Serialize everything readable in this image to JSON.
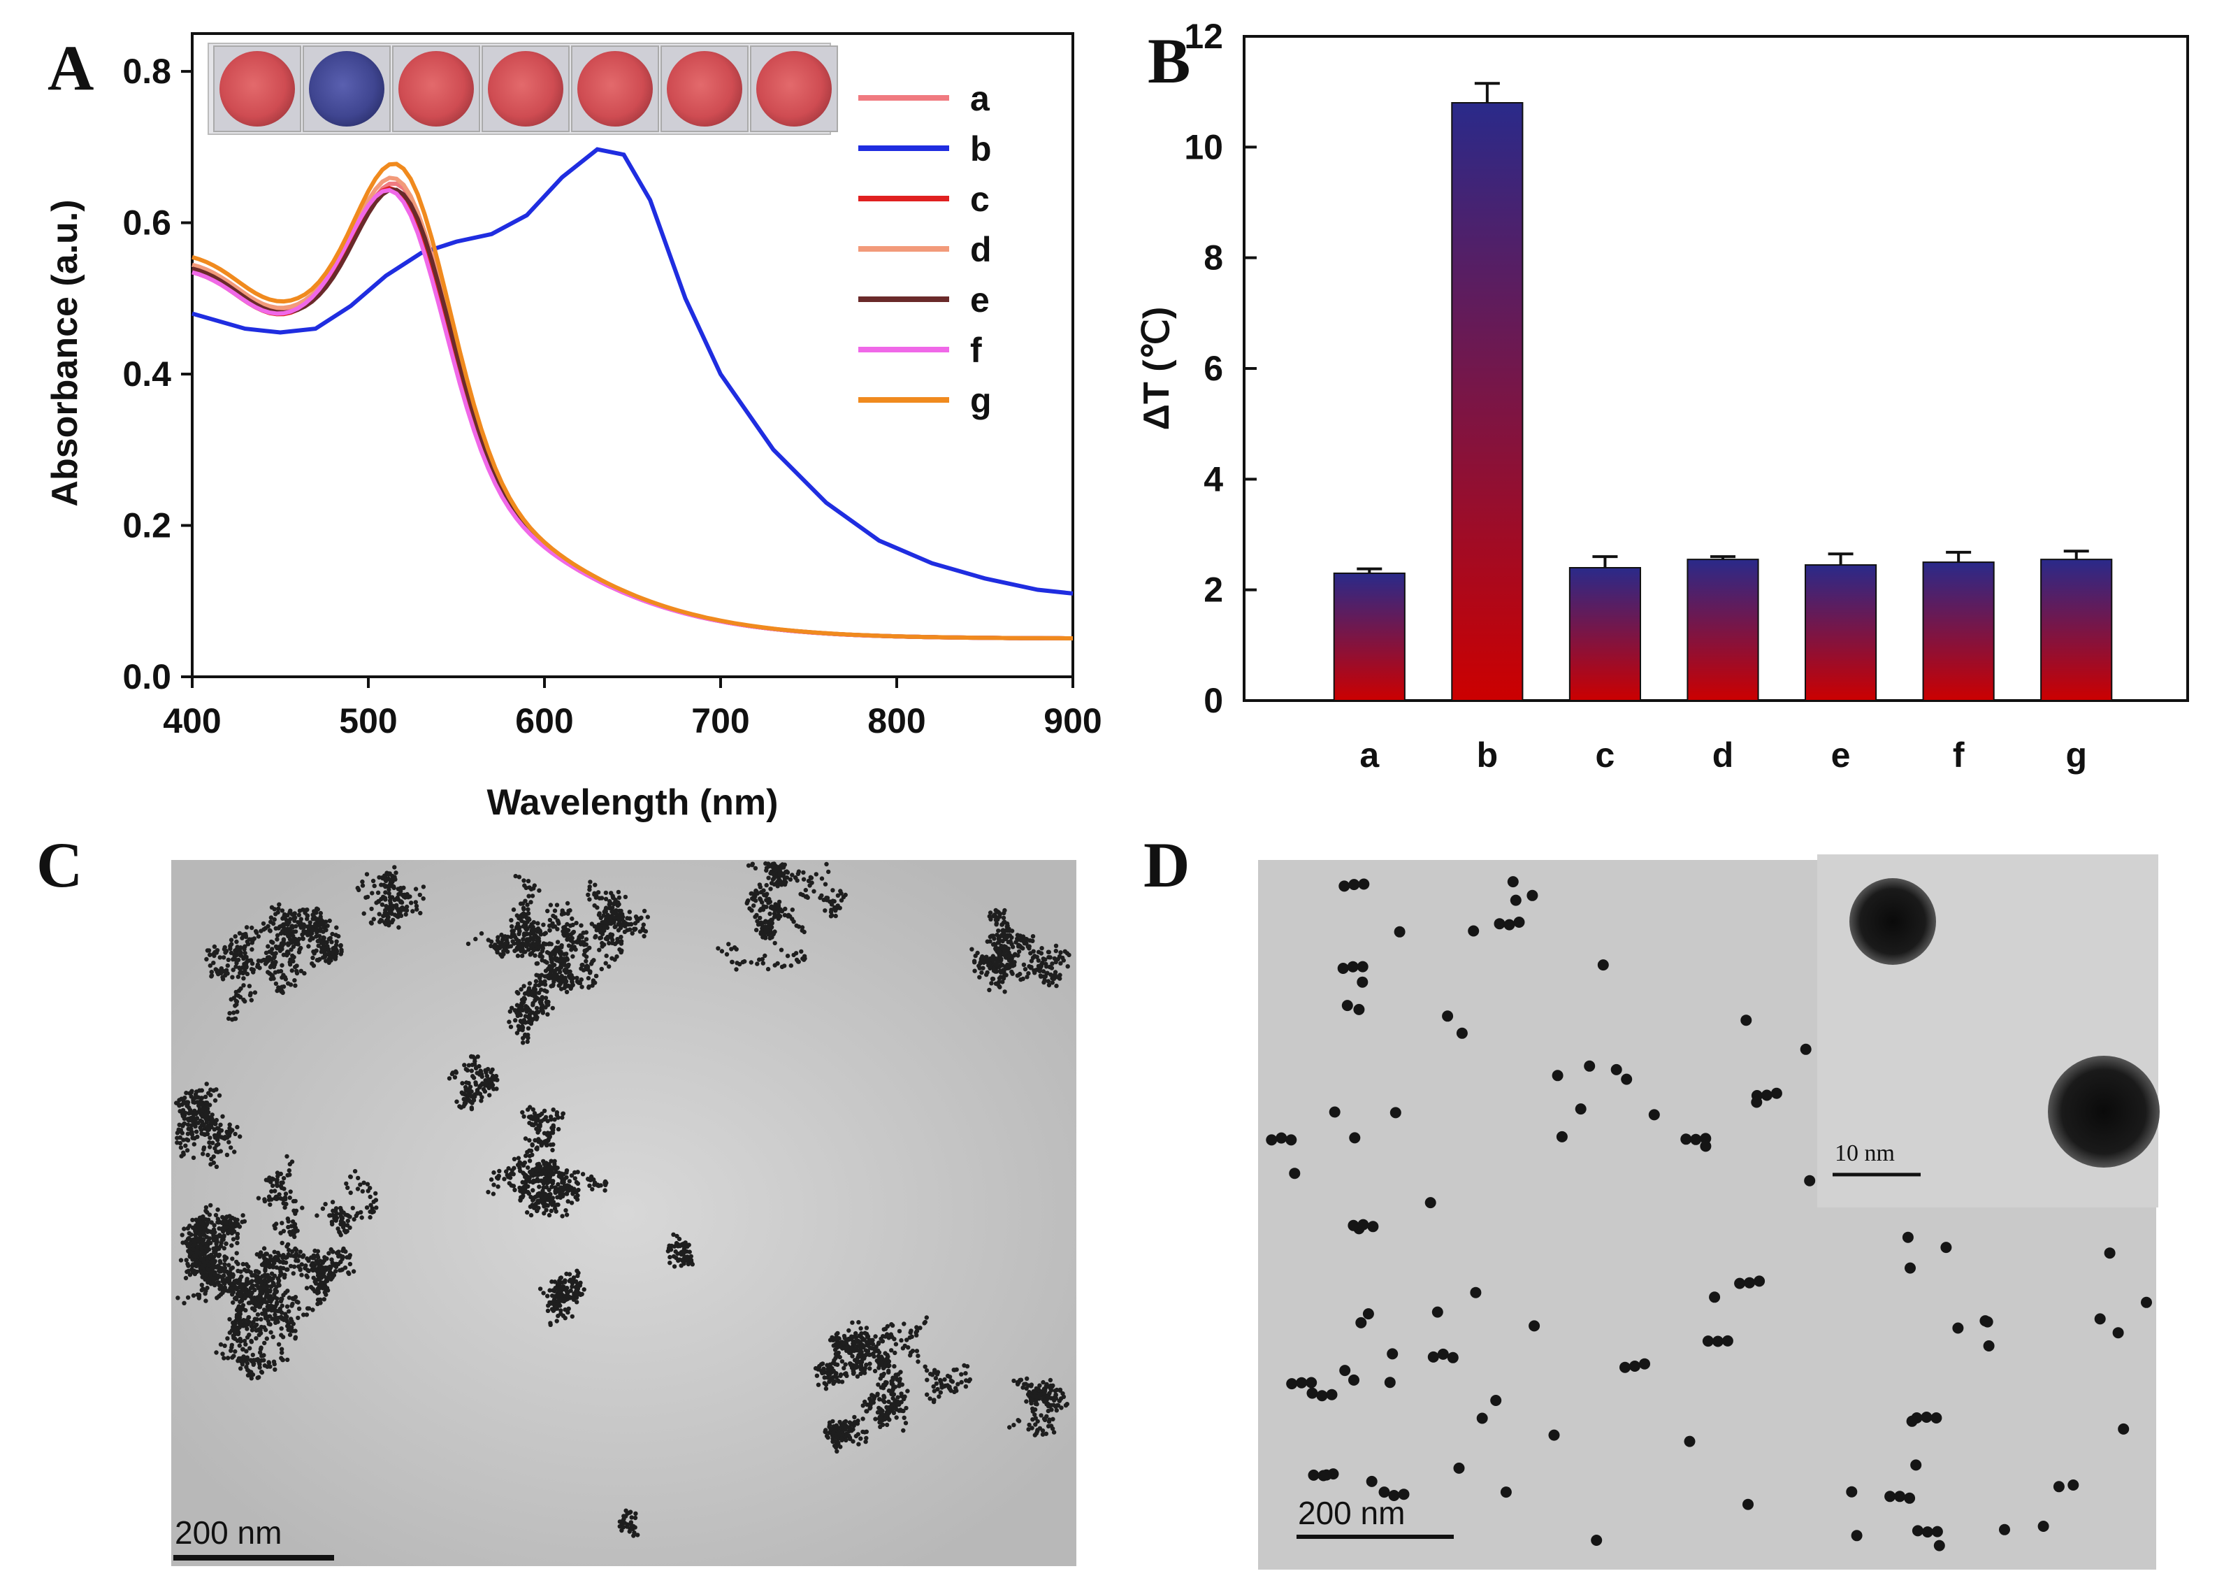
{
  "chart_data": [
    {
      "panel": "A",
      "type": "line",
      "xlabel": "Wavelength (nm)",
      "ylabel": "Absorbance (a.u.)",
      "xlim": [
        400,
        900
      ],
      "ylim": [
        0.0,
        0.85
      ],
      "xticks": [
        "400",
        "500",
        "600",
        "700",
        "800",
        "900"
      ],
      "yticks": [
        "0.0",
        "0.2",
        "0.4",
        "0.6",
        "0.8"
      ],
      "inset": {
        "description": "7 wells",
        "well_colors": [
          "#d9555a",
          "#4a4f9e",
          "#d9555a",
          "#d9555a",
          "#d9555a",
          "#d9555a",
          "#d9555a"
        ]
      },
      "series": [
        {
          "name": "a",
          "color": "#f07a80",
          "peak": 520,
          "amp": 0.665,
          "base": 0.45
        },
        {
          "name": "b",
          "color": "#1f2de0",
          "points": [
            [
              400,
              0.48
            ],
            [
              430,
              0.46
            ],
            [
              450,
              0.455
            ],
            [
              470,
              0.46
            ],
            [
              490,
              0.49
            ],
            [
              510,
              0.53
            ],
            [
              530,
              0.56
            ],
            [
              550,
              0.575
            ],
            [
              570,
              0.585
            ],
            [
              590,
              0.61
            ],
            [
              610,
              0.66
            ],
            [
              630,
              0.697
            ],
            [
              645,
              0.69
            ],
            [
              660,
              0.63
            ],
            [
              680,
              0.5
            ],
            [
              700,
              0.4
            ],
            [
              730,
              0.3
            ],
            [
              760,
              0.23
            ],
            [
              790,
              0.18
            ],
            [
              820,
              0.15
            ],
            [
              850,
              0.13
            ],
            [
              880,
              0.115
            ],
            [
              900,
              0.11
            ]
          ]
        },
        {
          "name": "c",
          "color": "#e02020",
          "peak": 518,
          "amp": 0.66,
          "base": 0.44
        },
        {
          "name": "d",
          "color": "#f29a7a",
          "peak": 519,
          "amp": 0.67,
          "base": 0.45
        },
        {
          "name": "e",
          "color": "#6a2a2a",
          "peak": 520,
          "amp": 0.66,
          "base": 0.445
        },
        {
          "name": "f",
          "color": "#f068e8",
          "peak": 517,
          "amp": 0.655,
          "base": 0.44
        },
        {
          "name": "g",
          "color": "#f08a1e",
          "peak": 520,
          "amp": 0.685,
          "base": 0.46
        }
      ]
    },
    {
      "panel": "B",
      "type": "bar",
      "ylabel": "ΔT (℃)",
      "ylim": [
        0,
        12
      ],
      "yticks": [
        "0",
        "2",
        "4",
        "6",
        "8",
        "10",
        "12"
      ],
      "categories": [
        "a",
        "b",
        "c",
        "d",
        "e",
        "f",
        "g"
      ],
      "values": [
        2.3,
        10.8,
        2.4,
        2.55,
        2.45,
        2.5,
        2.55
      ],
      "errors": [
        0.08,
        0.35,
        0.2,
        0.05,
        0.2,
        0.18,
        0.15
      ],
      "gradient": {
        "top": "#2a2a8a",
        "bottom": "#cc0000"
      }
    }
  ],
  "images": [
    {
      "panel": "C",
      "description": "TEM image of aggregated nanoparticle networks",
      "scale_bar": "200 nm"
    },
    {
      "panel": "D",
      "description": "TEM image of dispersed nanoparticles with high-resolution inset",
      "scale_bar": "200 nm",
      "inset_scale_bar": "10 nm"
    }
  ],
  "panel_labels": [
    "A",
    "B",
    "C",
    "D"
  ]
}
